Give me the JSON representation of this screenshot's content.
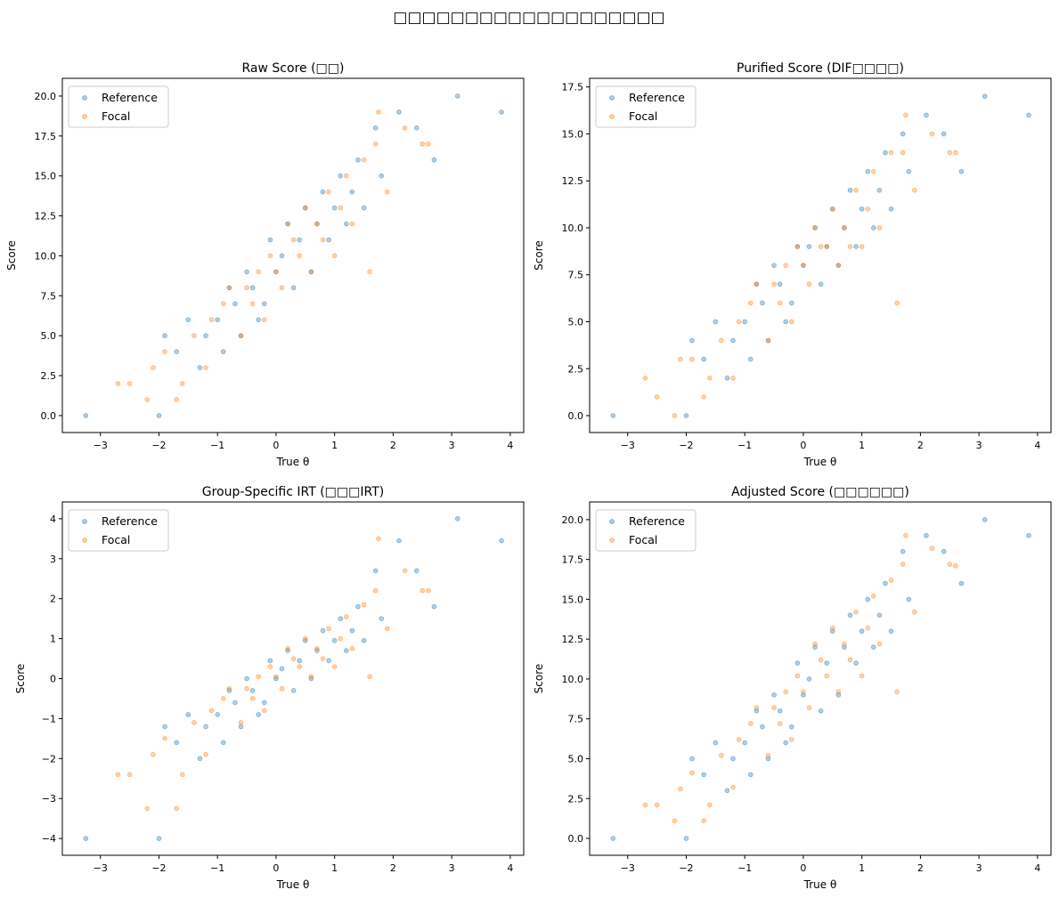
{
  "figure_title": "□□□□□□□□□□□□□□□□□□□",
  "colors": {
    "reference": "#1f77b4",
    "focal": "#ff7f0e"
  },
  "chart_data": [
    {
      "type": "scatter",
      "title": "Raw Score (□□)",
      "xlabel": "True θ",
      "ylabel": "Score",
      "xlim": [
        -3.65,
        4.23
      ],
      "ylim": [
        -1.06,
        21.11
      ],
      "xticks": [
        -3,
        -2,
        -1,
        0,
        1,
        2,
        3,
        4
      ],
      "xtick_labels": [
        "−3",
        "−2",
        "−1",
        "0",
        "1",
        "2",
        "3",
        "4"
      ],
      "yticks": [
        0,
        2.5,
        5,
        7.5,
        10,
        12.5,
        15,
        17.5,
        20
      ],
      "ytick_labels": [
        "0.0",
        "2.5",
        "5.0",
        "7.5",
        "10.0",
        "12.5",
        "15.0",
        "17.5",
        "20.0"
      ],
      "legend": "top-left",
      "grid": false,
      "series": [
        {
          "name": "Reference",
          "color": "#1f77b4",
          "x": [
            -3.25,
            -2.0,
            -1.9,
            -1.7,
            -1.5,
            -1.3,
            -1.2,
            -1.0,
            -0.9,
            -0.8,
            -0.7,
            -0.6,
            -0.5,
            -0.4,
            -0.3,
            -0.2,
            -0.1,
            0.0,
            0.1,
            0.2,
            0.3,
            0.4,
            0.5,
            0.6,
            0.7,
            0.8,
            0.9,
            1.0,
            1.1,
            1.2,
            1.3,
            1.4,
            1.5,
            1.7,
            1.8,
            2.1,
            2.4,
            2.7,
            3.1,
            3.85
          ],
          "y": [
            0,
            0,
            5,
            4,
            6,
            3,
            5,
            6,
            4,
            8,
            7,
            5,
            9,
            8,
            6,
            7,
            11,
            9,
            10,
            12,
            8,
            11,
            13,
            9,
            12,
            14,
            11,
            13,
            15,
            12,
            14,
            16,
            13,
            18,
            15,
            19,
            18,
            16,
            20,
            19
          ]
        },
        {
          "name": "Focal",
          "color": "#ff7f0e",
          "x": [
            -2.7,
            -2.5,
            -2.2,
            -2.1,
            -1.9,
            -1.7,
            -1.6,
            -1.4,
            -1.2,
            -1.1,
            -0.9,
            -0.8,
            -0.6,
            -0.5,
            -0.4,
            -0.3,
            -0.2,
            -0.1,
            0.0,
            0.1,
            0.2,
            0.3,
            0.4,
            0.5,
            0.6,
            0.7,
            0.8,
            0.9,
            1.0,
            1.1,
            1.2,
            1.3,
            1.5,
            1.6,
            1.7,
            1.75,
            1.9,
            2.2,
            2.5,
            2.6
          ],
          "y": [
            2,
            2,
            1,
            3,
            4,
            1,
            2,
            5,
            3,
            6,
            7,
            8,
            5,
            8,
            7,
            9,
            6,
            10,
            9,
            8,
            12,
            11,
            10,
            13,
            9,
            12,
            11,
            14,
            10,
            13,
            15,
            12,
            16,
            9,
            17,
            19,
            14,
            18,
            17,
            17
          ]
        }
      ]
    },
    {
      "type": "scatter",
      "title": "Purified Score (DIF□□□□)",
      "xlabel": "True θ",
      "ylabel": "Score",
      "xlim": [
        -3.65,
        4.23
      ],
      "ylim": [
        -0.9,
        17.96
      ],
      "xticks": [
        -3,
        -2,
        -1,
        0,
        1,
        2,
        3,
        4
      ],
      "xtick_labels": [
        "−3",
        "−2",
        "−1",
        "0",
        "1",
        "2",
        "3",
        "4"
      ],
      "yticks": [
        0,
        2.5,
        5,
        7.5,
        10,
        12.5,
        15,
        17.5
      ],
      "ytick_labels": [
        "0.0",
        "2.5",
        "5.0",
        "7.5",
        "10.0",
        "12.5",
        "15.0",
        "17.5"
      ],
      "legend": "top-left",
      "grid": false,
      "series": [
        {
          "name": "Reference",
          "color": "#1f77b4",
          "x": [
            -3.25,
            -2.0,
            -1.9,
            -1.7,
            -1.5,
            -1.3,
            -1.2,
            -1.0,
            -0.9,
            -0.8,
            -0.7,
            -0.6,
            -0.5,
            -0.4,
            -0.3,
            -0.2,
            -0.1,
            0.0,
            0.1,
            0.2,
            0.3,
            0.4,
            0.5,
            0.6,
            0.7,
            0.8,
            0.9,
            1.0,
            1.1,
            1.2,
            1.3,
            1.4,
            1.5,
            1.7,
            1.8,
            2.1,
            2.4,
            2.7,
            3.1,
            3.85
          ],
          "y": [
            0,
            0,
            4,
            3,
            5,
            2,
            4,
            5,
            3,
            7,
            6,
            4,
            8,
            7,
            5,
            6,
            9,
            8,
            9,
            10,
            7,
            9,
            11,
            8,
            10,
            12,
            9,
            11,
            13,
            10,
            12,
            14,
            11,
            15,
            13,
            16,
            15,
            13,
            17,
            16
          ]
        },
        {
          "name": "Focal",
          "color": "#ff7f0e",
          "x": [
            -2.7,
            -2.5,
            -2.2,
            -2.1,
            -1.9,
            -1.7,
            -1.6,
            -1.4,
            -1.2,
            -1.1,
            -0.9,
            -0.8,
            -0.6,
            -0.5,
            -0.4,
            -0.3,
            -0.2,
            -0.1,
            0.0,
            0.1,
            0.2,
            0.3,
            0.4,
            0.5,
            0.6,
            0.7,
            0.8,
            0.9,
            1.0,
            1.1,
            1.2,
            1.3,
            1.5,
            1.6,
            1.7,
            1.75,
            1.9,
            2.2,
            2.5,
            2.6
          ],
          "y": [
            2,
            1,
            0,
            3,
            3,
            1,
            2,
            4,
            2,
            5,
            6,
            7,
            4,
            7,
            6,
            8,
            5,
            9,
            8,
            7,
            10,
            9,
            9,
            11,
            8,
            10,
            9,
            12,
            9,
            11,
            13,
            10,
            14,
            6,
            14,
            16,
            12,
            15,
            14,
            14
          ]
        }
      ]
    },
    {
      "type": "scatter",
      "title": "Group-Specific IRT (□□□IRT)",
      "xlabel": "True θ",
      "ylabel": "Score",
      "xlim": [
        -3.65,
        4.23
      ],
      "ylim": [
        -4.42,
        4.42
      ],
      "xticks": [
        -3,
        -2,
        -1,
        0,
        1,
        2,
        3,
        4
      ],
      "xtick_labels": [
        "−3",
        "−2",
        "−1",
        "0",
        "1",
        "2",
        "3",
        "4"
      ],
      "yticks": [
        -4,
        -3,
        -2,
        -1,
        0,
        1,
        2,
        3,
        4
      ],
      "ytick_labels": [
        "−4",
        "−3",
        "−2",
        "−1",
        "0",
        "1",
        "2",
        "3",
        "4"
      ],
      "legend": "top-left",
      "grid": false,
      "series": [
        {
          "name": "Reference",
          "color": "#1f77b4",
          "x": [
            -3.25,
            -2.0,
            -1.9,
            -1.7,
            -1.5,
            -1.3,
            -1.2,
            -1.0,
            -0.9,
            -0.8,
            -0.7,
            -0.6,
            -0.5,
            -0.4,
            -0.3,
            -0.2,
            -0.1,
            0.0,
            0.1,
            0.2,
            0.3,
            0.4,
            0.5,
            0.6,
            0.7,
            0.8,
            0.9,
            1.0,
            1.1,
            1.2,
            1.3,
            1.4,
            1.5,
            1.7,
            1.8,
            2.1,
            2.4,
            2.7,
            3.1,
            3.85
          ],
          "y": [
            -4,
            -4,
            -1.2,
            -1.6,
            -0.9,
            -2.0,
            -1.2,
            -0.9,
            -1.6,
            -0.3,
            -0.6,
            -1.2,
            0,
            -0.3,
            -0.9,
            -0.6,
            0.45,
            0,
            0.25,
            0.7,
            -0.3,
            0.45,
            0.95,
            0,
            0.7,
            1.2,
            0.45,
            0.95,
            1.5,
            0.7,
            1.2,
            1.8,
            0.95,
            2.7,
            1.5,
            3.45,
            2.7,
            1.8,
            4,
            3.45
          ]
        },
        {
          "name": "Focal",
          "color": "#ff7f0e",
          "x": [
            -2.7,
            -2.5,
            -2.2,
            -2.1,
            -1.9,
            -1.7,
            -1.6,
            -1.4,
            -1.2,
            -1.1,
            -0.9,
            -0.8,
            -0.6,
            -0.5,
            -0.4,
            -0.3,
            -0.2,
            -0.1,
            0.0,
            0.1,
            0.2,
            0.3,
            0.4,
            0.5,
            0.6,
            0.7,
            0.8,
            0.9,
            1.0,
            1.1,
            1.2,
            1.3,
            1.5,
            1.6,
            1.7,
            1.75,
            1.9,
            2.2,
            2.5,
            2.6
          ],
          "y": [
            -2.4,
            -2.4,
            -3.25,
            -1.9,
            -1.5,
            -3.25,
            -2.4,
            -1.1,
            -1.9,
            -0.8,
            -0.5,
            -0.25,
            -1.1,
            -0.25,
            -0.5,
            0.05,
            -0.8,
            0.3,
            0.05,
            -0.25,
            0.75,
            0.5,
            0.3,
            1.0,
            0.05,
            0.75,
            0.5,
            1.25,
            0.3,
            1.0,
            1.55,
            0.75,
            1.85,
            0.05,
            2.2,
            3.5,
            1.25,
            2.7,
            2.2,
            2.2
          ]
        }
      ]
    },
    {
      "type": "scatter",
      "title": "Adjusted Score (□□□□□□)",
      "xlabel": "True θ",
      "ylabel": "Score",
      "xlim": [
        -3.65,
        4.23
      ],
      "ylim": [
        -1.06,
        21.11
      ],
      "xticks": [
        -3,
        -2,
        -1,
        0,
        1,
        2,
        3,
        4
      ],
      "xtick_labels": [
        "−3",
        "−2",
        "−1",
        "0",
        "1",
        "2",
        "3",
        "4"
      ],
      "yticks": [
        0,
        2.5,
        5,
        7.5,
        10,
        12.5,
        15,
        17.5,
        20
      ],
      "ytick_labels": [
        "0.0",
        "2.5",
        "5.0",
        "7.5",
        "10.0",
        "12.5",
        "15.0",
        "17.5",
        "20.0"
      ],
      "legend": "top-left",
      "grid": false,
      "series": [
        {
          "name": "Reference",
          "color": "#1f77b4",
          "x": [
            -3.25,
            -2.0,
            -1.9,
            -1.7,
            -1.5,
            -1.3,
            -1.2,
            -1.0,
            -0.9,
            -0.8,
            -0.7,
            -0.6,
            -0.5,
            -0.4,
            -0.3,
            -0.2,
            -0.1,
            0.0,
            0.1,
            0.2,
            0.3,
            0.4,
            0.5,
            0.6,
            0.7,
            0.8,
            0.9,
            1.0,
            1.1,
            1.2,
            1.3,
            1.4,
            1.5,
            1.7,
            1.8,
            2.1,
            2.4,
            2.7,
            3.1,
            3.85
          ],
          "y": [
            0,
            0,
            5,
            4,
            6,
            3,
            5,
            6,
            4,
            8,
            7,
            5,
            9,
            8,
            6,
            7,
            11,
            9,
            10,
            12,
            8,
            11,
            13,
            9,
            12,
            14,
            11,
            13,
            15,
            12,
            14,
            16,
            13,
            18,
            15,
            19,
            18,
            16,
            20,
            19
          ]
        },
        {
          "name": "Focal",
          "color": "#ff7f0e",
          "x": [
            -2.7,
            -2.5,
            -2.2,
            -2.1,
            -1.9,
            -1.7,
            -1.6,
            -1.4,
            -1.2,
            -1.1,
            -0.9,
            -0.8,
            -0.6,
            -0.5,
            -0.4,
            -0.3,
            -0.2,
            -0.1,
            0.0,
            0.1,
            0.2,
            0.3,
            0.4,
            0.5,
            0.6,
            0.7,
            0.8,
            0.9,
            1.0,
            1.1,
            1.2,
            1.3,
            1.5,
            1.6,
            1.7,
            1.75,
            1.9,
            2.2,
            2.5,
            2.6
          ],
          "y": [
            2.1,
            2.1,
            1.1,
            3.1,
            4.1,
            1.1,
            2.1,
            5.2,
            3.2,
            6.2,
            7.2,
            8.2,
            5.2,
            8.2,
            7.2,
            9.2,
            6.2,
            10.2,
            9.2,
            8.2,
            12.2,
            11.2,
            10.2,
            13.2,
            9.2,
            12.2,
            11.2,
            14.2,
            10.2,
            13.2,
            15.2,
            12.2,
            16.2,
            9.2,
            17.2,
            19,
            14.2,
            18.2,
            17.2,
            17.1
          ]
        }
      ]
    }
  ]
}
